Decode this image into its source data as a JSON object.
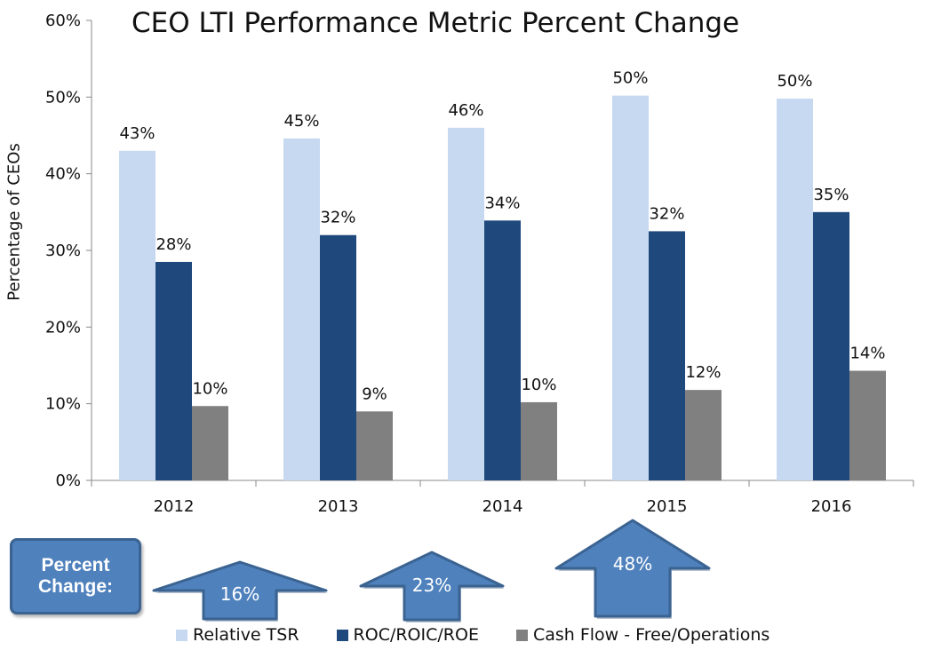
{
  "chart_data": {
    "type": "bar",
    "title": "CEO LTI Performance Metric Percent Change",
    "ylabel": "Percentage of CEOs",
    "xlabel": "",
    "categories": [
      "2012",
      "2013",
      "2014",
      "2015",
      "2016"
    ],
    "ylim": [
      0,
      60
    ],
    "yticks": [
      "0%",
      "10%",
      "20%",
      "30%",
      "40%",
      "50%",
      "60%"
    ],
    "grid": false,
    "legend_position": "bottom",
    "series": [
      {
        "name": "Relative TSR",
        "color": "#c6d9f1",
        "values": [
          43,
          44.6,
          46,
          50.2,
          49.8
        ],
        "labels": [
          "43%",
          "45%",
          "46%",
          "50%",
          "50%"
        ]
      },
      {
        "name": "ROC/ROIC/ROE",
        "color": "#1f497d",
        "values": [
          28.5,
          32,
          33.9,
          32.5,
          35
        ],
        "labels": [
          "28%",
          "32%",
          "34%",
          "32%",
          "35%"
        ]
      },
      {
        "name": "Cash Flow - Free/Operations",
        "color": "#808080",
        "values": [
          9.7,
          9,
          10.2,
          11.8,
          14.3
        ],
        "labels": [
          "10%",
          "9%",
          "10%",
          "12%",
          "14%"
        ]
      }
    ]
  },
  "percent_change": {
    "label_line1": "Percent",
    "label_line2": "Change:",
    "arrows": [
      {
        "series": "Relative TSR",
        "value": "16%"
      },
      {
        "series": "ROC/ROIC/ROE",
        "value": "23%"
      },
      {
        "series": "Cash Flow - Free/Operations",
        "value": "48%"
      }
    ],
    "arrow_color": "#4f81bd",
    "arrow_border": "#3b6391"
  }
}
